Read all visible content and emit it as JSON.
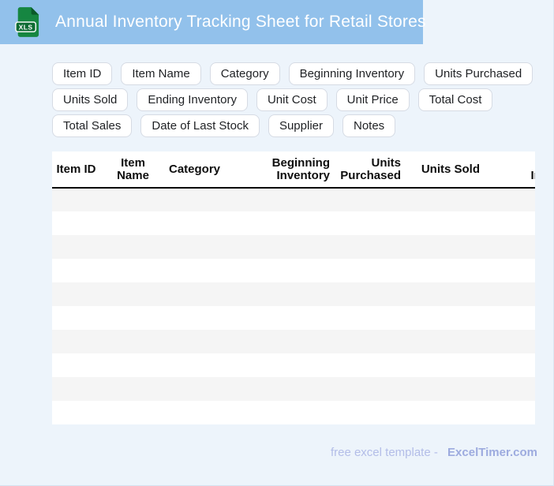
{
  "header": {
    "title": "Annual Inventory Tracking Sheet for Retail Stores",
    "file_badge": "XLS",
    "bg_color": "#92c1eb"
  },
  "chips": [
    "Item ID",
    "Item Name",
    "Category",
    "Beginning Inventory",
    "Units Purchased",
    "Units Sold",
    "Ending Inventory",
    "Unit Cost",
    "Unit Price",
    "Total Cost",
    "Total Sales",
    "Date of Last Stock",
    "Supplier",
    "Notes"
  ],
  "table": {
    "columns": [
      {
        "label": "Item ID",
        "align": "center"
      },
      {
        "label": "Item Name",
        "align": "center"
      },
      {
        "label": "Category",
        "align": "left"
      },
      {
        "label": "Beginning Inventory",
        "align": "right"
      },
      {
        "label": "Units Purchased",
        "align": "right"
      },
      {
        "label": "Units Sold",
        "align": "right"
      },
      {
        "label": "Ending Inventory",
        "align": "right"
      }
    ],
    "row_count": 10,
    "rows": []
  },
  "footer": {
    "text": "free excel template -",
    "brand": "ExcelTimer.com"
  },
  "colors": {
    "header_bg": "#92c1eb",
    "page_bg": "#edf4fb",
    "stripe": "#f5f5f5",
    "icon_body_green": "#168641",
    "icon_fold_green": "#0a5a2a",
    "icon_badge_green": "#0e6b33",
    "footer_text": "#b3bde8",
    "footer_brand": "#9dabdf"
  }
}
